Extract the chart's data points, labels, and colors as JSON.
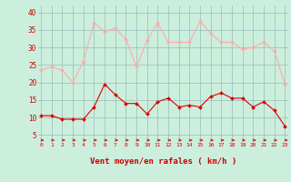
{
  "hours": [
    0,
    1,
    2,
    3,
    4,
    5,
    6,
    7,
    8,
    9,
    10,
    11,
    12,
    13,
    14,
    15,
    16,
    17,
    18,
    19,
    20,
    21,
    22,
    23
  ],
  "wind_avg": [
    10.5,
    10.5,
    9.5,
    9.5,
    9.5,
    13,
    19.5,
    16.5,
    14,
    14,
    11,
    14.5,
    15.5,
    13,
    13.5,
    13,
    16,
    17,
    15.5,
    15.5,
    13,
    14.5,
    12,
    7.5
  ],
  "wind_gust": [
    23.5,
    24.5,
    23.5,
    20,
    26,
    37,
    34.5,
    35.5,
    32.5,
    24.5,
    32,
    37,
    31.5,
    31.5,
    31.5,
    37.5,
    34,
    31.5,
    31.5,
    29.5,
    30,
    31.5,
    29,
    19.5
  ],
  "avg_color": "#dd0000",
  "gust_color": "#ffaaaa",
  "bg_color": "#cceedd",
  "grid_color": "#99bbbb",
  "xlabel": "Vent moyen/en rafales ( km/h )",
  "ylabel_ticks": [
    5,
    10,
    15,
    20,
    25,
    30,
    35,
    40
  ],
  "ylim": [
    3,
    42
  ],
  "xlim": [
    -0.3,
    23.3
  ],
  "arrow_color": "#cc0000",
  "xlabel_color": "#cc0000",
  "tick_color": "#cc0000"
}
